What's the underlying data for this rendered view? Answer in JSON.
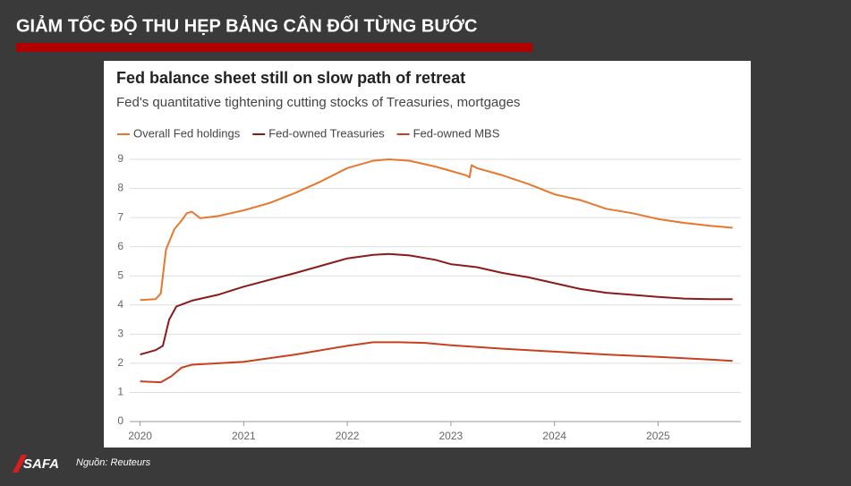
{
  "header": {
    "title": "GIẢM TỐC ĐỘ THU HẸP BẢNG CÂN ĐỐI TỪNG BƯỚC",
    "logo": "SAFA",
    "source": "Nguồn: Reuteurs"
  },
  "chart_data": {
    "type": "line",
    "title": "Fed balance sheet still on slow path of retreat",
    "subtitle": "Fed's quantitative tightening cutting stocks of Treasuries, mortgages",
    "xlim": [
      2019.9,
      2025.8
    ],
    "xticks": [
      2020,
      2021,
      2022,
      2023,
      2024,
      2025
    ],
    "ylim": [
      0,
      9
    ],
    "yticks": [
      0,
      1,
      2,
      3,
      4,
      5,
      6,
      7,
      8,
      9
    ],
    "grid": true,
    "legend": "top-left",
    "series": [
      {
        "name": "Overall Fed holdings",
        "color": "#e8772e",
        "x": [
          2020.0,
          2020.15,
          2020.2,
          2020.25,
          2020.33,
          2020.4,
          2020.45,
          2020.5,
          2020.58,
          2020.75,
          2021.0,
          2021.25,
          2021.5,
          2021.75,
          2022.0,
          2022.25,
          2022.4,
          2022.6,
          2022.85,
          2023.0,
          2023.15,
          2023.18,
          2023.2,
          2023.25,
          2023.5,
          2023.75,
          2024.0,
          2024.25,
          2024.5,
          2024.75,
          2025.0,
          2025.25,
          2025.5,
          2025.72
        ],
        "values": [
          4.17,
          4.2,
          4.4,
          5.9,
          6.6,
          6.9,
          7.15,
          7.2,
          6.98,
          7.05,
          7.25,
          7.5,
          7.85,
          8.25,
          8.7,
          8.95,
          9.0,
          8.95,
          8.75,
          8.6,
          8.45,
          8.38,
          8.8,
          8.7,
          8.45,
          8.15,
          7.8,
          7.6,
          7.3,
          7.15,
          6.95,
          6.82,
          6.72,
          6.65
        ]
      },
      {
        "name": "Fed-owned Treasuries",
        "color": "#8b1a1a",
        "x": [
          2020.0,
          2020.15,
          2020.22,
          2020.28,
          2020.35,
          2020.5,
          2020.75,
          2021.0,
          2021.5,
          2022.0,
          2022.25,
          2022.4,
          2022.6,
          2022.85,
          2023.0,
          2023.25,
          2023.5,
          2023.75,
          2024.0,
          2024.25,
          2024.5,
          2024.75,
          2025.0,
          2025.25,
          2025.5,
          2025.72
        ],
        "values": [
          2.3,
          2.45,
          2.6,
          3.5,
          3.95,
          4.15,
          4.35,
          4.63,
          5.1,
          5.6,
          5.72,
          5.75,
          5.7,
          5.55,
          5.4,
          5.3,
          5.1,
          4.95,
          4.75,
          4.55,
          4.42,
          4.35,
          4.28,
          4.22,
          4.2,
          4.2
        ]
      },
      {
        "name": "Fed-owned MBS",
        "color": "#c8401f",
        "x": [
          2020.0,
          2020.2,
          2020.3,
          2020.4,
          2020.5,
          2021.0,
          2021.5,
          2022.0,
          2022.25,
          2022.5,
          2022.75,
          2023.0,
          2023.5,
          2024.0,
          2024.5,
          2025.0,
          2025.5,
          2025.72
        ],
        "values": [
          1.38,
          1.35,
          1.55,
          1.85,
          1.95,
          2.05,
          2.3,
          2.6,
          2.72,
          2.72,
          2.7,
          2.62,
          2.5,
          2.4,
          2.3,
          2.22,
          2.13,
          2.08
        ]
      }
    ]
  }
}
